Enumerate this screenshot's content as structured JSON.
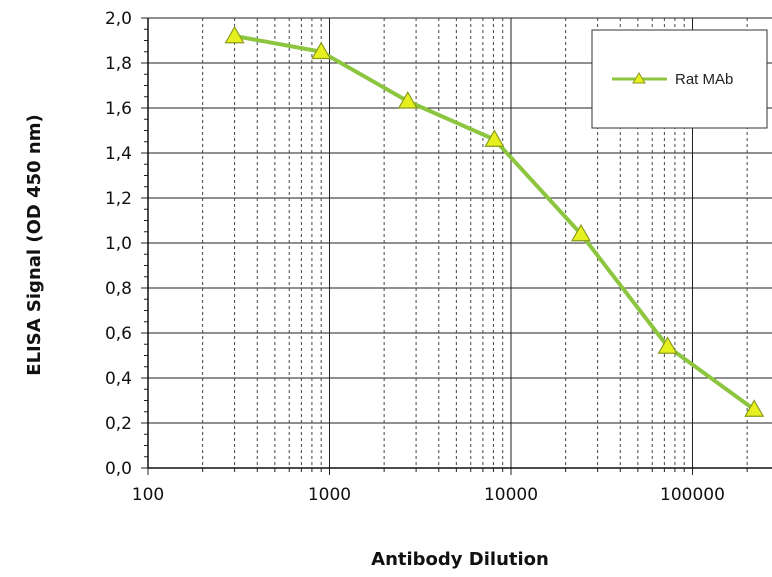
{
  "chart_data": {
    "type": "line",
    "xscale": "log",
    "xlim": [
      100,
      250000
    ],
    "ylim": [
      0.0,
      2.0
    ],
    "xlabel": "Antibody Dilution",
    "ylabel": "ELISA Signal (OD 450 nm)",
    "x_tick_labels": [
      "100",
      "1000",
      "10000",
      "100000"
    ],
    "y_tick_labels": [
      "0,0",
      "0,2",
      "0,4",
      "0,6",
      "0,8",
      "1,0",
      "1,2",
      "1,4",
      "1,6",
      "1,8",
      "2,0"
    ],
    "grid": true,
    "legend_position": "top-right",
    "series": [
      {
        "name": "Rat MAb",
        "color": "#8cc63f",
        "marker": "triangle",
        "marker_color": "#e6f01e",
        "points": [
          {
            "x": 300,
            "y": 1.92
          },
          {
            "x": 900,
            "y": 1.85
          },
          {
            "x": 2700,
            "y": 1.63
          },
          {
            "x": 8100,
            "y": 1.46
          },
          {
            "x": 24300,
            "y": 1.04
          },
          {
            "x": 72900,
            "y": 0.54
          },
          {
            "x": 218700,
            "y": 0.26
          }
        ]
      }
    ]
  }
}
